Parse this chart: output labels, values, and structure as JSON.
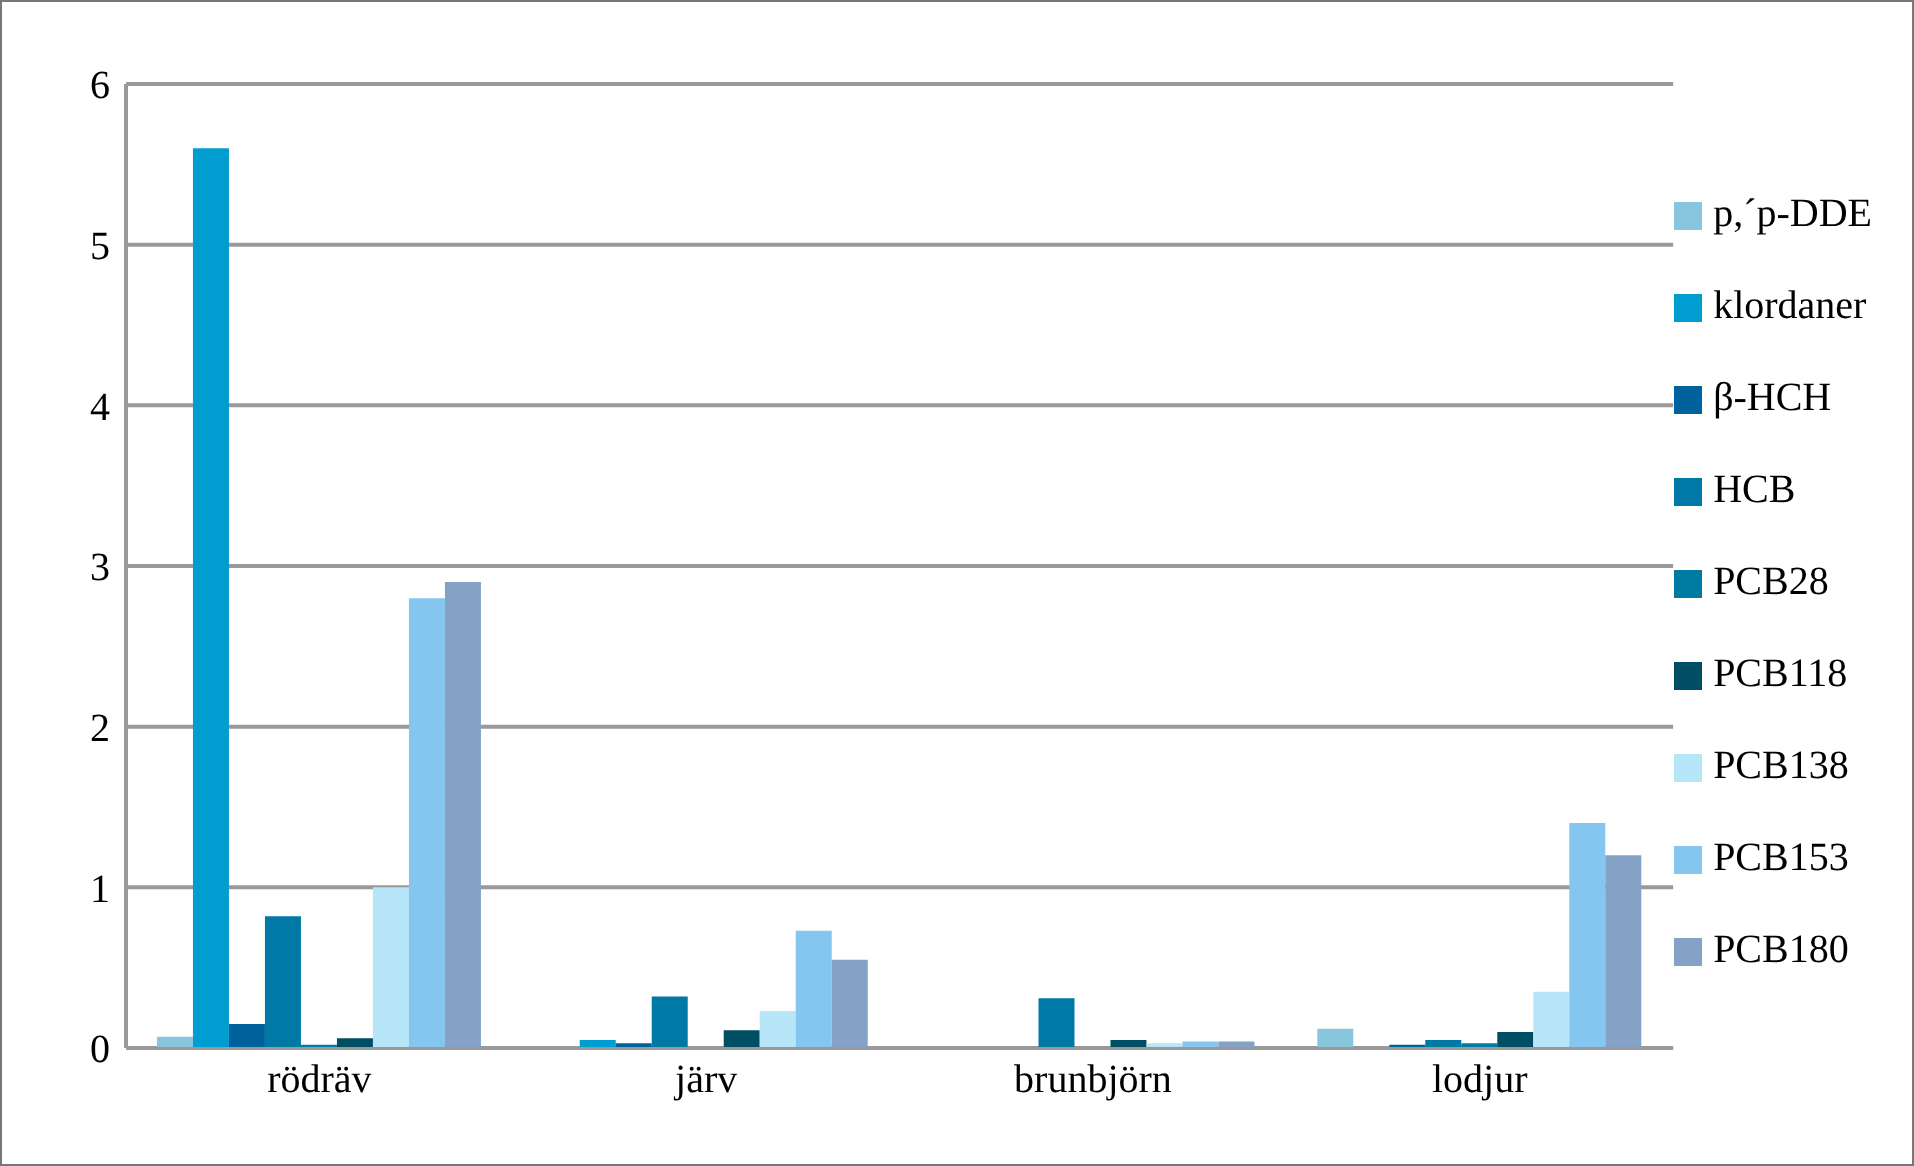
{
  "chart_data": {
    "type": "bar",
    "categories": [
      "rödräv",
      "järv",
      "brunbjörn",
      "lodjur"
    ],
    "series": [
      {
        "name": "p,´p-DDE",
        "color": "#88c6dd",
        "values": [
          0.07,
          0,
          0,
          0.12
        ]
      },
      {
        "name": "klordaner",
        "color": "#009dd1",
        "values": [
          5.6,
          0.05,
          0,
          0
        ]
      },
      {
        "name": "β-HCH",
        "color": "#00629c",
        "values": [
          0.15,
          0.03,
          0,
          0.02
        ]
      },
      {
        "name": "HCB",
        "color": "#0079a6",
        "values": [
          0.82,
          0.32,
          0.31,
          0.05
        ]
      },
      {
        "name": "PCB28",
        "color": "#007ba4",
        "values": [
          0.02,
          0,
          0,
          0.03
        ]
      },
      {
        "name": "PCB118",
        "color": "#004e63",
        "values": [
          0.06,
          0.11,
          0.05,
          0.1
        ]
      },
      {
        "name": "PCB138",
        "color": "#b6e6f7",
        "values": [
          1.0,
          0.23,
          0.03,
          0.35
        ]
      },
      {
        "name": "PCB153",
        "color": "#85c6f0",
        "values": [
          2.8,
          0.73,
          0.04,
          1.4
        ]
      },
      {
        "name": "PCB180",
        "color": "#84a2c6",
        "values": [
          2.9,
          0.55,
          0.04,
          1.2
        ]
      }
    ],
    "ylim": [
      0,
      6
    ],
    "yticks": [
      0,
      1,
      2,
      3,
      4,
      5,
      6
    ],
    "grid": "y",
    "legend": "right"
  }
}
